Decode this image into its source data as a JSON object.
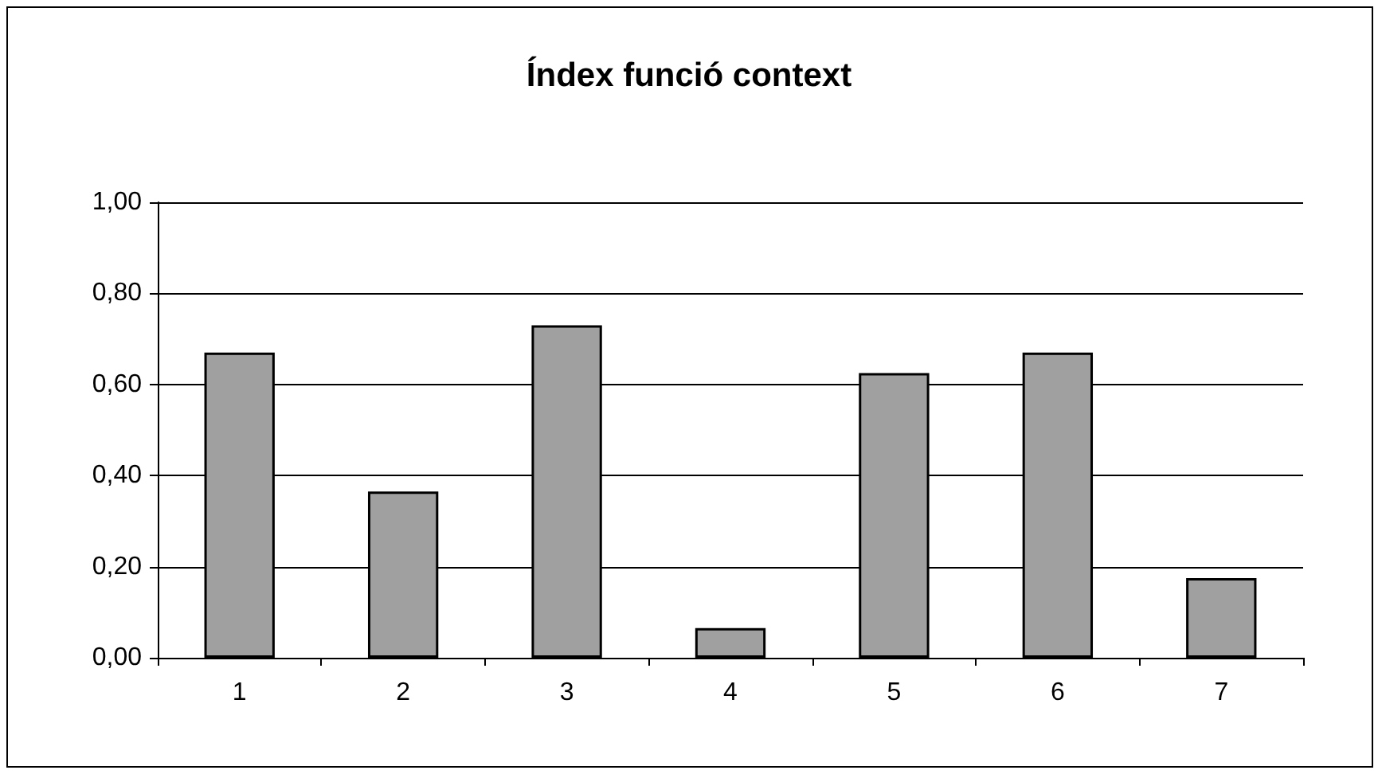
{
  "chart_data": {
    "type": "bar",
    "title": "Índex funció context",
    "categories": [
      "1",
      "2",
      "3",
      "4",
      "5",
      "6",
      "7"
    ],
    "values": [
      0.67,
      0.365,
      0.73,
      0.065,
      0.625,
      0.67,
      0.175
    ],
    "color": "#a0a0a0",
    "ylim": [
      0,
      1
    ],
    "yticks": [
      {
        "value": 0,
        "label": "0,00"
      },
      {
        "value": 0.2,
        "label": "0,20"
      },
      {
        "value": 0.4,
        "label": "0,40"
      },
      {
        "value": 0.6,
        "label": "0,60"
      },
      {
        "value": 0.8,
        "label": "0,80"
      },
      {
        "value": 1,
        "label": "1,00"
      }
    ],
    "grid": "y"
  }
}
